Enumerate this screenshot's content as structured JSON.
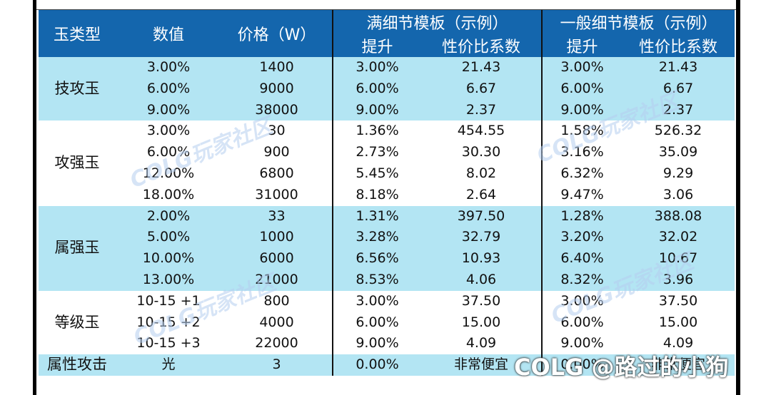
{
  "header": {
    "type": "玉类型",
    "value": "数值",
    "price": "价格（W）",
    "full_template": "满细节模板（示例）",
    "normal_template": "一般细节模板（示例）",
    "sub_gain": "提升",
    "sub_ratio": "性价比系数"
  },
  "groups": [
    {
      "type": "技攻玉",
      "rows": [
        [
          "3.00%",
          "1400",
          "3.00%",
          "21.43",
          "3.00%",
          "21.43"
        ],
        [
          "6.00%",
          "9000",
          "6.00%",
          "6.67",
          "6.00%",
          "6.67"
        ],
        [
          "9.00%",
          "38000",
          "9.00%",
          "2.37",
          "9.00%",
          "2.37"
        ]
      ]
    },
    {
      "type": "攻强玉",
      "rows": [
        [
          "3.00%",
          "30",
          "1.36%",
          "454.55",
          "1.58%",
          "526.32"
        ],
        [
          "6.00%",
          "900",
          "2.73%",
          "30.30",
          "3.16%",
          "35.09"
        ],
        [
          "12.00%",
          "6800",
          "5.45%",
          "8.02",
          "6.32%",
          "9.29"
        ],
        [
          "18.00%",
          "31000",
          "8.18%",
          "2.64",
          "9.47%",
          "3.06"
        ]
      ]
    },
    {
      "type": "属强玉",
      "rows": [
        [
          "2.00%",
          "33",
          "1.31%",
          "397.50",
          "1.28%",
          "388.08"
        ],
        [
          "5.00%",
          "1000",
          "3.28%",
          "32.79",
          "3.20%",
          "32.02"
        ],
        [
          "10.00%",
          "6000",
          "6.56%",
          "10.93",
          "6.40%",
          "10.67"
        ],
        [
          "13.00%",
          "21000",
          "8.53%",
          "4.06",
          "8.32%",
          "3.96"
        ]
      ]
    },
    {
      "type": "等级玉",
      "rows": [
        [
          "10-15 +1",
          "800",
          "3.00%",
          "37.50",
          "3.00%",
          "37.50"
        ],
        [
          "10-15 +2",
          "4000",
          "6.00%",
          "15.00",
          "6.00%",
          "15.00"
        ],
        [
          "10-15 +3",
          "22000",
          "9.00%",
          "4.09",
          "9.00%",
          "4.09"
        ]
      ]
    },
    {
      "type": "属性攻击",
      "rows": [
        [
          "光",
          "3",
          "0.00%",
          "非常便宜",
          "0.00%",
          "非常便宜"
        ]
      ]
    }
  ],
  "watermark": "COLG玩家社区",
  "signature": "COLG @路过的小狗",
  "colors": {
    "header_bg": "#1466ad",
    "band_blue": "#b3e5f3",
    "band_white": "#ffffff"
  }
}
